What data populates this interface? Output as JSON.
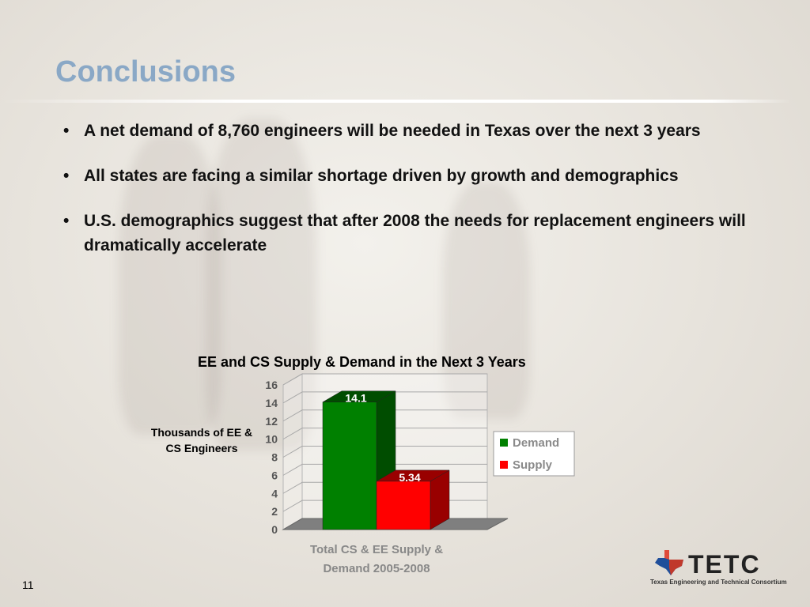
{
  "slide": {
    "title": "Conclusions",
    "page_number": "11",
    "bullets": [
      {
        "marker": "•",
        "text": "A net demand of 8,760 engineers will be needed in Texas over the next 3 years"
      },
      {
        "marker": "•",
        "text": "All states are facing a similar shortage driven by growth and demographics"
      },
      {
        "marker": "•",
        "text": "U.S. demographics suggest that after 2008 the needs for replacement engineers will dramatically accelerate"
      }
    ],
    "logo": {
      "letters": "TETC",
      "tagline": "Texas Engineering and Technical Consortium"
    }
  },
  "chart_data": {
    "type": "bar",
    "title": "EE and CS Supply & Demand in the Next 3 Years",
    "ylabel": "Thousands of EE & CS Engineers",
    "categories": [
      "Total CS & EE Supply & Demand 2005-2008"
    ],
    "series": [
      {
        "name": "Demand",
        "values": [
          14.1
        ],
        "color": "#008000"
      },
      {
        "name": "Supply",
        "values": [
          5.34
        ],
        "color": "#ff0000"
      }
    ],
    "ylim": [
      0,
      16
    ],
    "yticks": [
      "0",
      "2",
      "4",
      "6",
      "8",
      "10",
      "12",
      "14",
      "16"
    ],
    "data_labels": [
      "14.1",
      "5.34"
    ],
    "legend": "right",
    "grid": true
  }
}
